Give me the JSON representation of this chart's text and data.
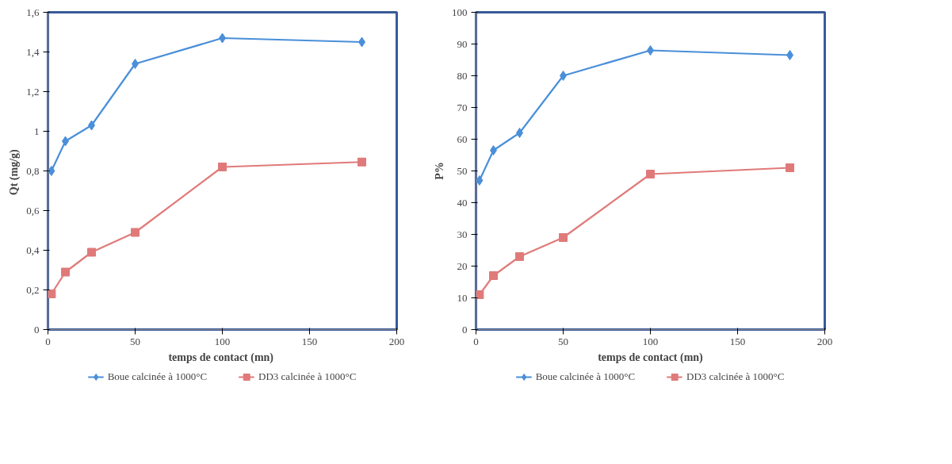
{
  "chart_data": [
    {
      "type": "line",
      "xlabel": "temps de contact  (mn)",
      "ylabel": "Qt  (mg/g)",
      "x": [
        2,
        10,
        25,
        50,
        100,
        180
      ],
      "xlim": [
        0,
        200
      ],
      "ylim": [
        0,
        1.6
      ],
      "xticks": [
        0,
        50,
        100,
        150,
        200
      ],
      "yticks": [
        0,
        {
          "value": 0.2,
          "label": "0,2"
        },
        {
          "value": 0.4,
          "label": "0,4"
        },
        {
          "value": 0.6,
          "label": "0,6"
        },
        {
          "value": 0.8,
          "label": "0,8"
        },
        1,
        {
          "value": 1.2,
          "label": "1,2"
        },
        {
          "value": 1.4,
          "label": "1,4"
        },
        {
          "value": 1.6,
          "label": "1,6"
        }
      ],
      "legend": "bottom",
      "series": [
        {
          "name": "Boue calcinée à 1000°C",
          "color": "#4a8fd9",
          "marker": "diamond",
          "values": [
            0.8,
            0.95,
            1.03,
            1.34,
            1.47,
            1.45
          ]
        },
        {
          "name": "DD3 calcinée à 1000°C",
          "color": "#e07a7a",
          "marker": "square",
          "values": [
            0.18,
            0.29,
            0.39,
            0.49,
            0.82,
            0.845
          ]
        }
      ]
    },
    {
      "type": "line",
      "xlabel": "temps de contact (mn)",
      "ylabel": "P%",
      "x": [
        2,
        10,
        25,
        50,
        100,
        180
      ],
      "xlim": [
        0,
        200
      ],
      "ylim": [
        0,
        100
      ],
      "xticks": [
        0,
        50,
        100,
        150,
        200
      ],
      "yticks": [
        0,
        10,
        20,
        30,
        40,
        50,
        60,
        70,
        80,
        90,
        100
      ],
      "legend": "bottom",
      "series": [
        {
          "name": "Boue calcinée à 1000°C",
          "color": "#4a8fd9",
          "marker": "diamond",
          "values": [
            47,
            56.5,
            62,
            80,
            88,
            86.5
          ]
        },
        {
          "name": "DD3 calcinée à 1000°C",
          "color": "#e07a7a",
          "marker": "square",
          "values": [
            11,
            17,
            23,
            29,
            49,
            51
          ]
        }
      ]
    }
  ]
}
